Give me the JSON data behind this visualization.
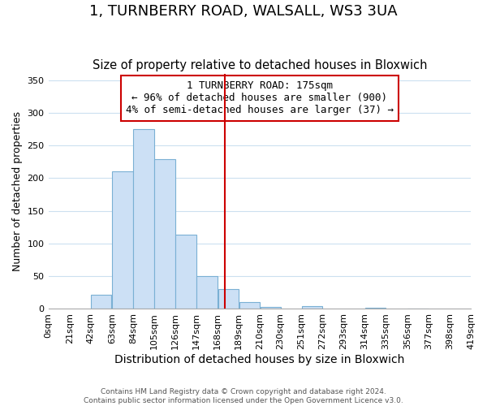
{
  "title": "1, TURNBERRY ROAD, WALSALL, WS3 3UA",
  "subtitle": "Size of property relative to detached houses in Bloxwich",
  "xlabel": "Distribution of detached houses by size in Bloxwich",
  "ylabel": "Number of detached properties",
  "footer_lines": [
    "Contains HM Land Registry data © Crown copyright and database right 2024.",
    "Contains public sector information licensed under the Open Government Licence v3.0."
  ],
  "bin_edges": [
    0,
    21,
    42,
    63,
    84,
    105,
    126,
    147,
    168,
    189,
    210,
    230,
    251,
    272,
    293,
    314,
    335,
    356,
    377,
    398,
    419
  ],
  "bin_labels": [
    "0sqm",
    "21sqm",
    "42sqm",
    "63sqm",
    "84sqm",
    "105sqm",
    "126sqm",
    "147sqm",
    "168sqm",
    "189sqm",
    "210sqm",
    "230sqm",
    "251sqm",
    "272sqm",
    "293sqm",
    "314sqm",
    "335sqm",
    "356sqm",
    "377sqm",
    "398sqm",
    "419sqm"
  ],
  "bar_heights": [
    0,
    0,
    22,
    210,
    275,
    229,
    114,
    50,
    30,
    11,
    3,
    0,
    4,
    0,
    0,
    2,
    0,
    1,
    0,
    0
  ],
  "bar_color": "#cce0f5",
  "bar_edge_color": "#7ab0d4",
  "property_size": 175,
  "vline_color": "#cc0000",
  "annotation_text": "1 TURNBERRY ROAD: 175sqm\n← 96% of detached houses are smaller (900)\n4% of semi-detached houses are larger (37) →",
  "annotation_box_color": "#ffffff",
  "annotation_box_edge": "#cc0000",
  "ylim": [
    0,
    360
  ],
  "yticks": [
    0,
    50,
    100,
    150,
    200,
    250,
    300,
    350
  ],
  "background_color": "#ffffff",
  "grid_color": "#cce0f0",
  "title_fontsize": 13,
  "subtitle_fontsize": 10.5,
  "annotation_fontsize": 9,
  "tick_fontsize": 8,
  "xlabel_fontsize": 10,
  "ylabel_fontsize": 9
}
